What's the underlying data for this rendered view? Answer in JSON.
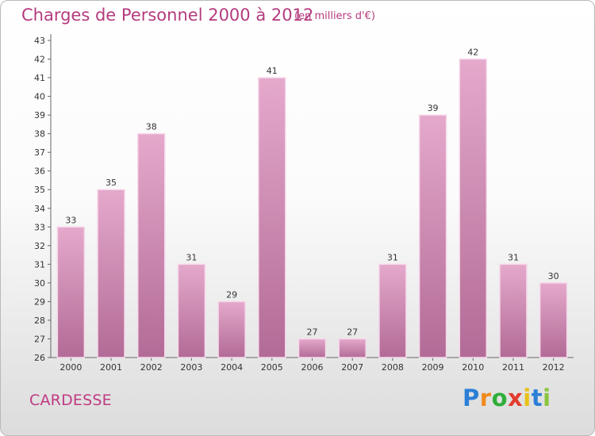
{
  "header": {
    "title": "Charges de Personnel 2000 à 2012",
    "subtitle": "(en milliers d'€)"
  },
  "footer": {
    "commune": "CARDESSE",
    "logo_letters": [
      "P",
      "r",
      "o",
      "x",
      "i",
      "t",
      "i"
    ],
    "logo_colors": [
      "#2c7fd6",
      "#f08a1c",
      "#2fae3a",
      "#e23b2e",
      "#e8c018",
      "#2c7fd6",
      "#8ac53e"
    ]
  },
  "colors": {
    "bar_light": "#e5a9cc",
    "bar_dark": "#b26b96",
    "bar_edge": "#f6d8ea",
    "text": "#b43b7e"
  },
  "chart_data": {
    "type": "bar",
    "categories": [
      "2000",
      "2001",
      "2002",
      "2003",
      "2004",
      "2005",
      "2006",
      "2007",
      "2008",
      "2009",
      "2010",
      "2011",
      "2012"
    ],
    "values": [
      33,
      35,
      38,
      31,
      29,
      41,
      27,
      27,
      31,
      39,
      42,
      31,
      30
    ],
    "data_labels": [
      "33",
      "35",
      "38",
      "31",
      "29",
      "41",
      "27",
      "27",
      "31",
      "39",
      "42",
      "31",
      "30"
    ],
    "title": "Charges de Personnel 2000 à 2012",
    "subtitle": "(en milliers d'€)",
    "ylim": [
      26,
      43
    ],
    "yticks": [
      26,
      27,
      28,
      29,
      30,
      31,
      32,
      33,
      34,
      35,
      36,
      37,
      38,
      39,
      40,
      41,
      42,
      43
    ],
    "grid": false
  }
}
